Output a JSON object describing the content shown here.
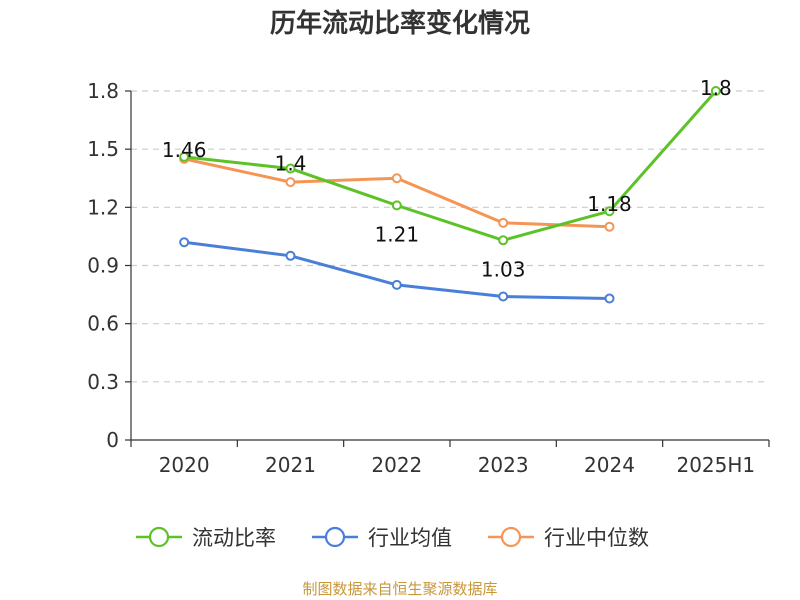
{
  "chart_data": {
    "type": "line",
    "title": "历年流动比率变化情况",
    "categories": [
      "2020",
      "2021",
      "2022",
      "2023",
      "2024",
      "2025H1"
    ],
    "ylim": [
      0,
      1.8
    ],
    "yticks": [
      "0",
      "0.3",
      "0.6",
      "0.9",
      "1.2",
      "1.5",
      "1.8"
    ],
    "grid": true,
    "legend_position": "bottom",
    "series": [
      {
        "name": "流动比率",
        "color": "#5cc228",
        "values": [
          1.46,
          1.4,
          1.21,
          1.03,
          1.18,
          1.8
        ],
        "labels": [
          "1.46",
          "1.4",
          "1.21",
          "1.03",
          "1.18",
          "1.8"
        ]
      },
      {
        "name": "行业均值",
        "color": "#4a7fd9",
        "values": [
          1.02,
          0.95,
          0.8,
          0.74,
          0.73,
          null
        ]
      },
      {
        "name": "行业中位数",
        "color": "#f49556",
        "values": [
          1.45,
          1.33,
          1.35,
          1.12,
          1.1,
          null
        ]
      }
    ],
    "source": "制图数据来自恒生聚源数据库"
  }
}
